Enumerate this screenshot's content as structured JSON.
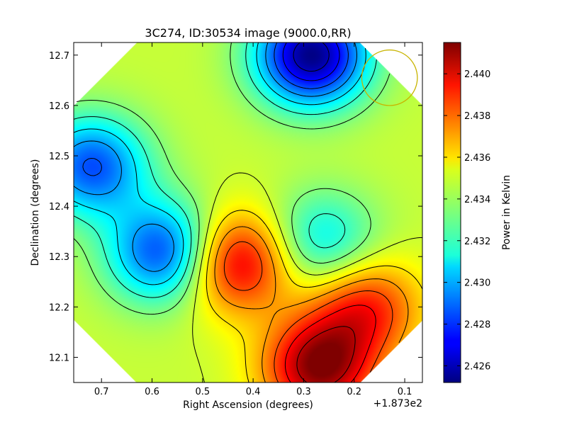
{
  "chart_data": {
    "type": "heatmap",
    "title": "3C274, ID:30534 image (9000.0,RR)",
    "xlabel": "Right Ascension (degrees)",
    "ylabel": "Declination (degrees)",
    "x_offset_label": "+1.873e2",
    "xlim": [
      0.755,
      0.065
    ],
    "ylim": [
      12.05,
      12.725
    ],
    "x_ticks": [
      "0.7",
      "0.6",
      "0.5",
      "0.4",
      "0.3",
      "0.2",
      "0.1"
    ],
    "y_ticks": [
      "12.1",
      "12.2",
      "12.3",
      "12.4",
      "12.5",
      "12.6",
      "12.7"
    ],
    "colorbar": {
      "label": "Power in Kelvin",
      "range": [
        2.4252,
        2.4415
      ],
      "ticks": [
        "2.426",
        "2.428",
        "2.430",
        "2.432",
        "2.434",
        "2.436",
        "2.438",
        "2.440"
      ]
    },
    "colormap": "jet",
    "features": [
      {
        "kind": "minimum",
        "x": 0.285,
        "y": 12.7,
        "value": 2.4253
      },
      {
        "kind": "minimum",
        "x": 0.575,
        "y": 12.31,
        "value": 2.428
      },
      {
        "kind": "minimum",
        "x": 0.72,
        "y": 12.48,
        "value": 2.4285
      },
      {
        "kind": "minimum",
        "x": 0.265,
        "y": 12.33,
        "value": 2.431
      },
      {
        "kind": "maximum",
        "x": 0.435,
        "y": 12.29,
        "value": 2.4405
      },
      {
        "kind": "maximum",
        "x": 0.27,
        "y": 12.08,
        "value": 2.4413
      },
      {
        "kind": "maximum",
        "x": 0.18,
        "y": 12.2,
        "value": 2.439
      }
    ],
    "beam_marker": {
      "x": 0.13,
      "y": 12.655,
      "radius_deg": 0.055,
      "color": "#c8b400"
    },
    "grid": false
  }
}
